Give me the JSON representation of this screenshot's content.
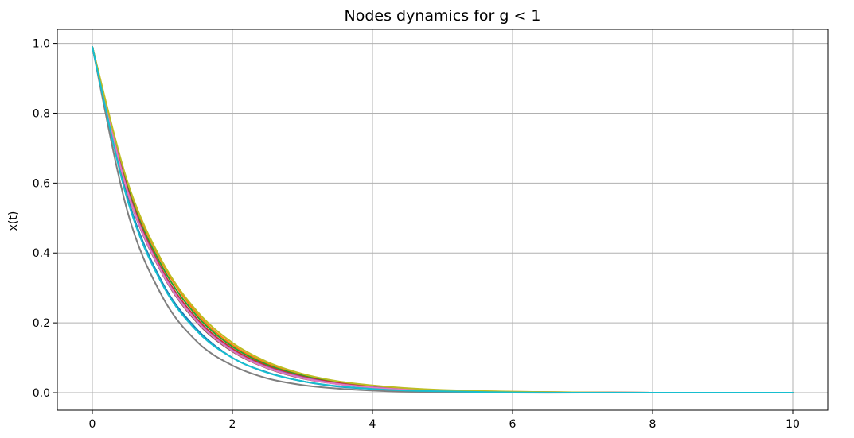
{
  "chart_data": {
    "type": "line",
    "title": "Nodes dynamics for g < 1",
    "xlabel": "",
    "ylabel": "x(t)",
    "xlim": [
      -0.5,
      10.5
    ],
    "ylim": [
      -0.05,
      1.04
    ],
    "xticks": [
      0,
      2,
      4,
      6,
      8,
      10
    ],
    "yticks": [
      0.0,
      0.2,
      0.4,
      0.6,
      0.8,
      1.0
    ],
    "xtick_labels": [
      "0",
      "2",
      "4",
      "6",
      "8",
      "10"
    ],
    "ytick_labels": [
      "0.0",
      "0.2",
      "0.4",
      "0.6",
      "0.8",
      "1.0"
    ],
    "grid": true,
    "x": [
      0,
      0.5,
      1,
      1.5,
      2,
      2.5,
      3,
      3.5,
      4,
      4.5,
      5,
      6,
      7,
      8,
      9,
      10
    ],
    "series": [
      {
        "color": "#1f77b4",
        "values": [
          0.99,
          0.56,
          0.315,
          0.18,
          0.1,
          0.058,
          0.033,
          0.018,
          0.011,
          0.006,
          0.004,
          0.001,
          0.0,
          0.0,
          0.0,
          0.0
        ]
      },
      {
        "color": "#ff7f0e",
        "values": [
          0.99,
          0.6,
          0.37,
          0.225,
          0.137,
          0.084,
          0.051,
          0.031,
          0.019,
          0.012,
          0.007,
          0.003,
          0.001,
          0.0,
          0.0,
          0.0
        ]
      },
      {
        "color": "#2ca02c",
        "values": [
          0.99,
          0.59,
          0.36,
          0.218,
          0.132,
          0.08,
          0.049,
          0.03,
          0.018,
          0.011,
          0.007,
          0.002,
          0.001,
          0.0,
          0.0,
          0.0
        ]
      },
      {
        "color": "#d62728",
        "values": [
          0.99,
          0.585,
          0.35,
          0.21,
          0.126,
          0.076,
          0.046,
          0.028,
          0.017,
          0.01,
          0.006,
          0.002,
          0.001,
          0.0,
          0.0,
          0.0
        ]
      },
      {
        "color": "#9467bd",
        "values": [
          0.99,
          0.58,
          0.345,
          0.205,
          0.122,
          0.073,
          0.044,
          0.026,
          0.016,
          0.009,
          0.006,
          0.002,
          0.001,
          0.0,
          0.0,
          0.0
        ]
      },
      {
        "color": "#8c564b",
        "values": [
          0.99,
          0.575,
          0.34,
          0.2,
          0.118,
          0.07,
          0.041,
          0.025,
          0.015,
          0.009,
          0.005,
          0.002,
          0.001,
          0.0,
          0.0,
          0.0
        ]
      },
      {
        "color": "#e377c2",
        "values": [
          0.99,
          0.577,
          0.342,
          0.203,
          0.12,
          0.071,
          0.042,
          0.025,
          0.015,
          0.009,
          0.005,
          0.002,
          0.001,
          0.0,
          0.0,
          0.0
        ]
      },
      {
        "color": "#7f7f7f",
        "values": [
          0.99,
          0.52,
          0.275,
          0.145,
          0.078,
          0.041,
          0.022,
          0.012,
          0.006,
          0.003,
          0.002,
          0.0,
          0.0,
          0.0,
          0.0,
          0.0
        ]
      },
      {
        "color": "#bcbd22",
        "values": [
          0.99,
          0.605,
          0.375,
          0.232,
          0.143,
          0.088,
          0.054,
          0.033,
          0.021,
          0.013,
          0.008,
          0.003,
          0.001,
          0.0,
          0.0,
          0.0
        ]
      },
      {
        "color": "#17becf",
        "values": [
          0.99,
          0.553,
          0.31,
          0.175,
          0.1,
          0.057,
          0.033,
          0.019,
          0.011,
          0.006,
          0.004,
          0.001,
          0.0,
          0.0,
          0.0,
          0.0
        ]
      }
    ]
  }
}
